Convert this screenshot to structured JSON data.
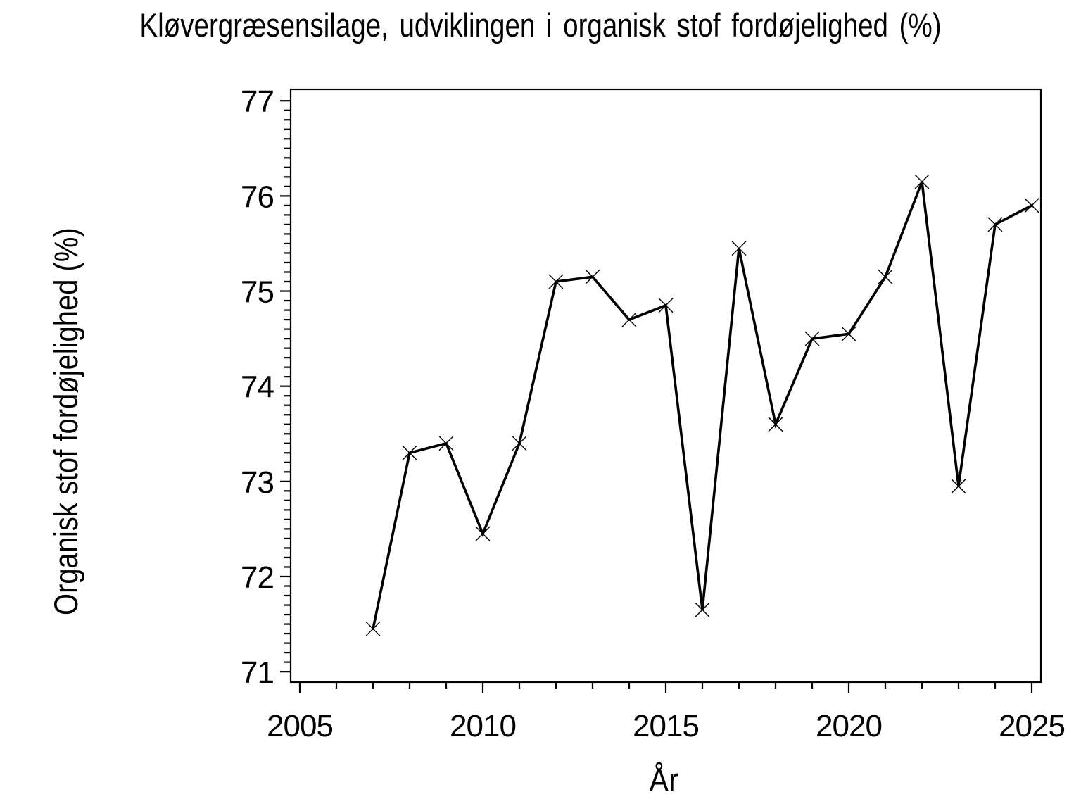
{
  "page": {
    "background_color": "#ffffff",
    "text_color": "#000000"
  },
  "chart_data": {
    "type": "line",
    "title": "Kløvergræsensilage, udviklingen i organisk stof fordøjelighed (%)",
    "xlabel": "År",
    "ylabel": "Organisk stof fordøjelighed (%)",
    "x": [
      2007,
      2008,
      2009,
      2010,
      2011,
      2012,
      2013,
      2014,
      2015,
      2016,
      2017,
      2018,
      2019,
      2020,
      2021,
      2022,
      2023,
      2024,
      2025
    ],
    "y": [
      71.45,
      73.3,
      73.4,
      72.45,
      73.4,
      75.1,
      75.15,
      74.7,
      74.85,
      71.65,
      75.45,
      73.6,
      74.5,
      74.55,
      75.15,
      76.15,
      72.95,
      75.7,
      75.9
    ],
    "series_name": "Organisk stof fordøjelighed",
    "marker": "x",
    "line_color": "#000000",
    "marker_color": "#000000",
    "axis_color": "#000000",
    "xlim": [
      2004.75,
      2025.25
    ],
    "ylim": [
      70.89,
      77.12
    ],
    "x_major_ticks": [
      2005,
      2010,
      2015,
      2020,
      2025
    ],
    "x_minor_tick_step": 1,
    "y_major_ticks": [
      71,
      72,
      73,
      74,
      75,
      76,
      77
    ],
    "y_minor_tick_step": 0.1,
    "grid": false,
    "legend": "none",
    "frame": true
  }
}
